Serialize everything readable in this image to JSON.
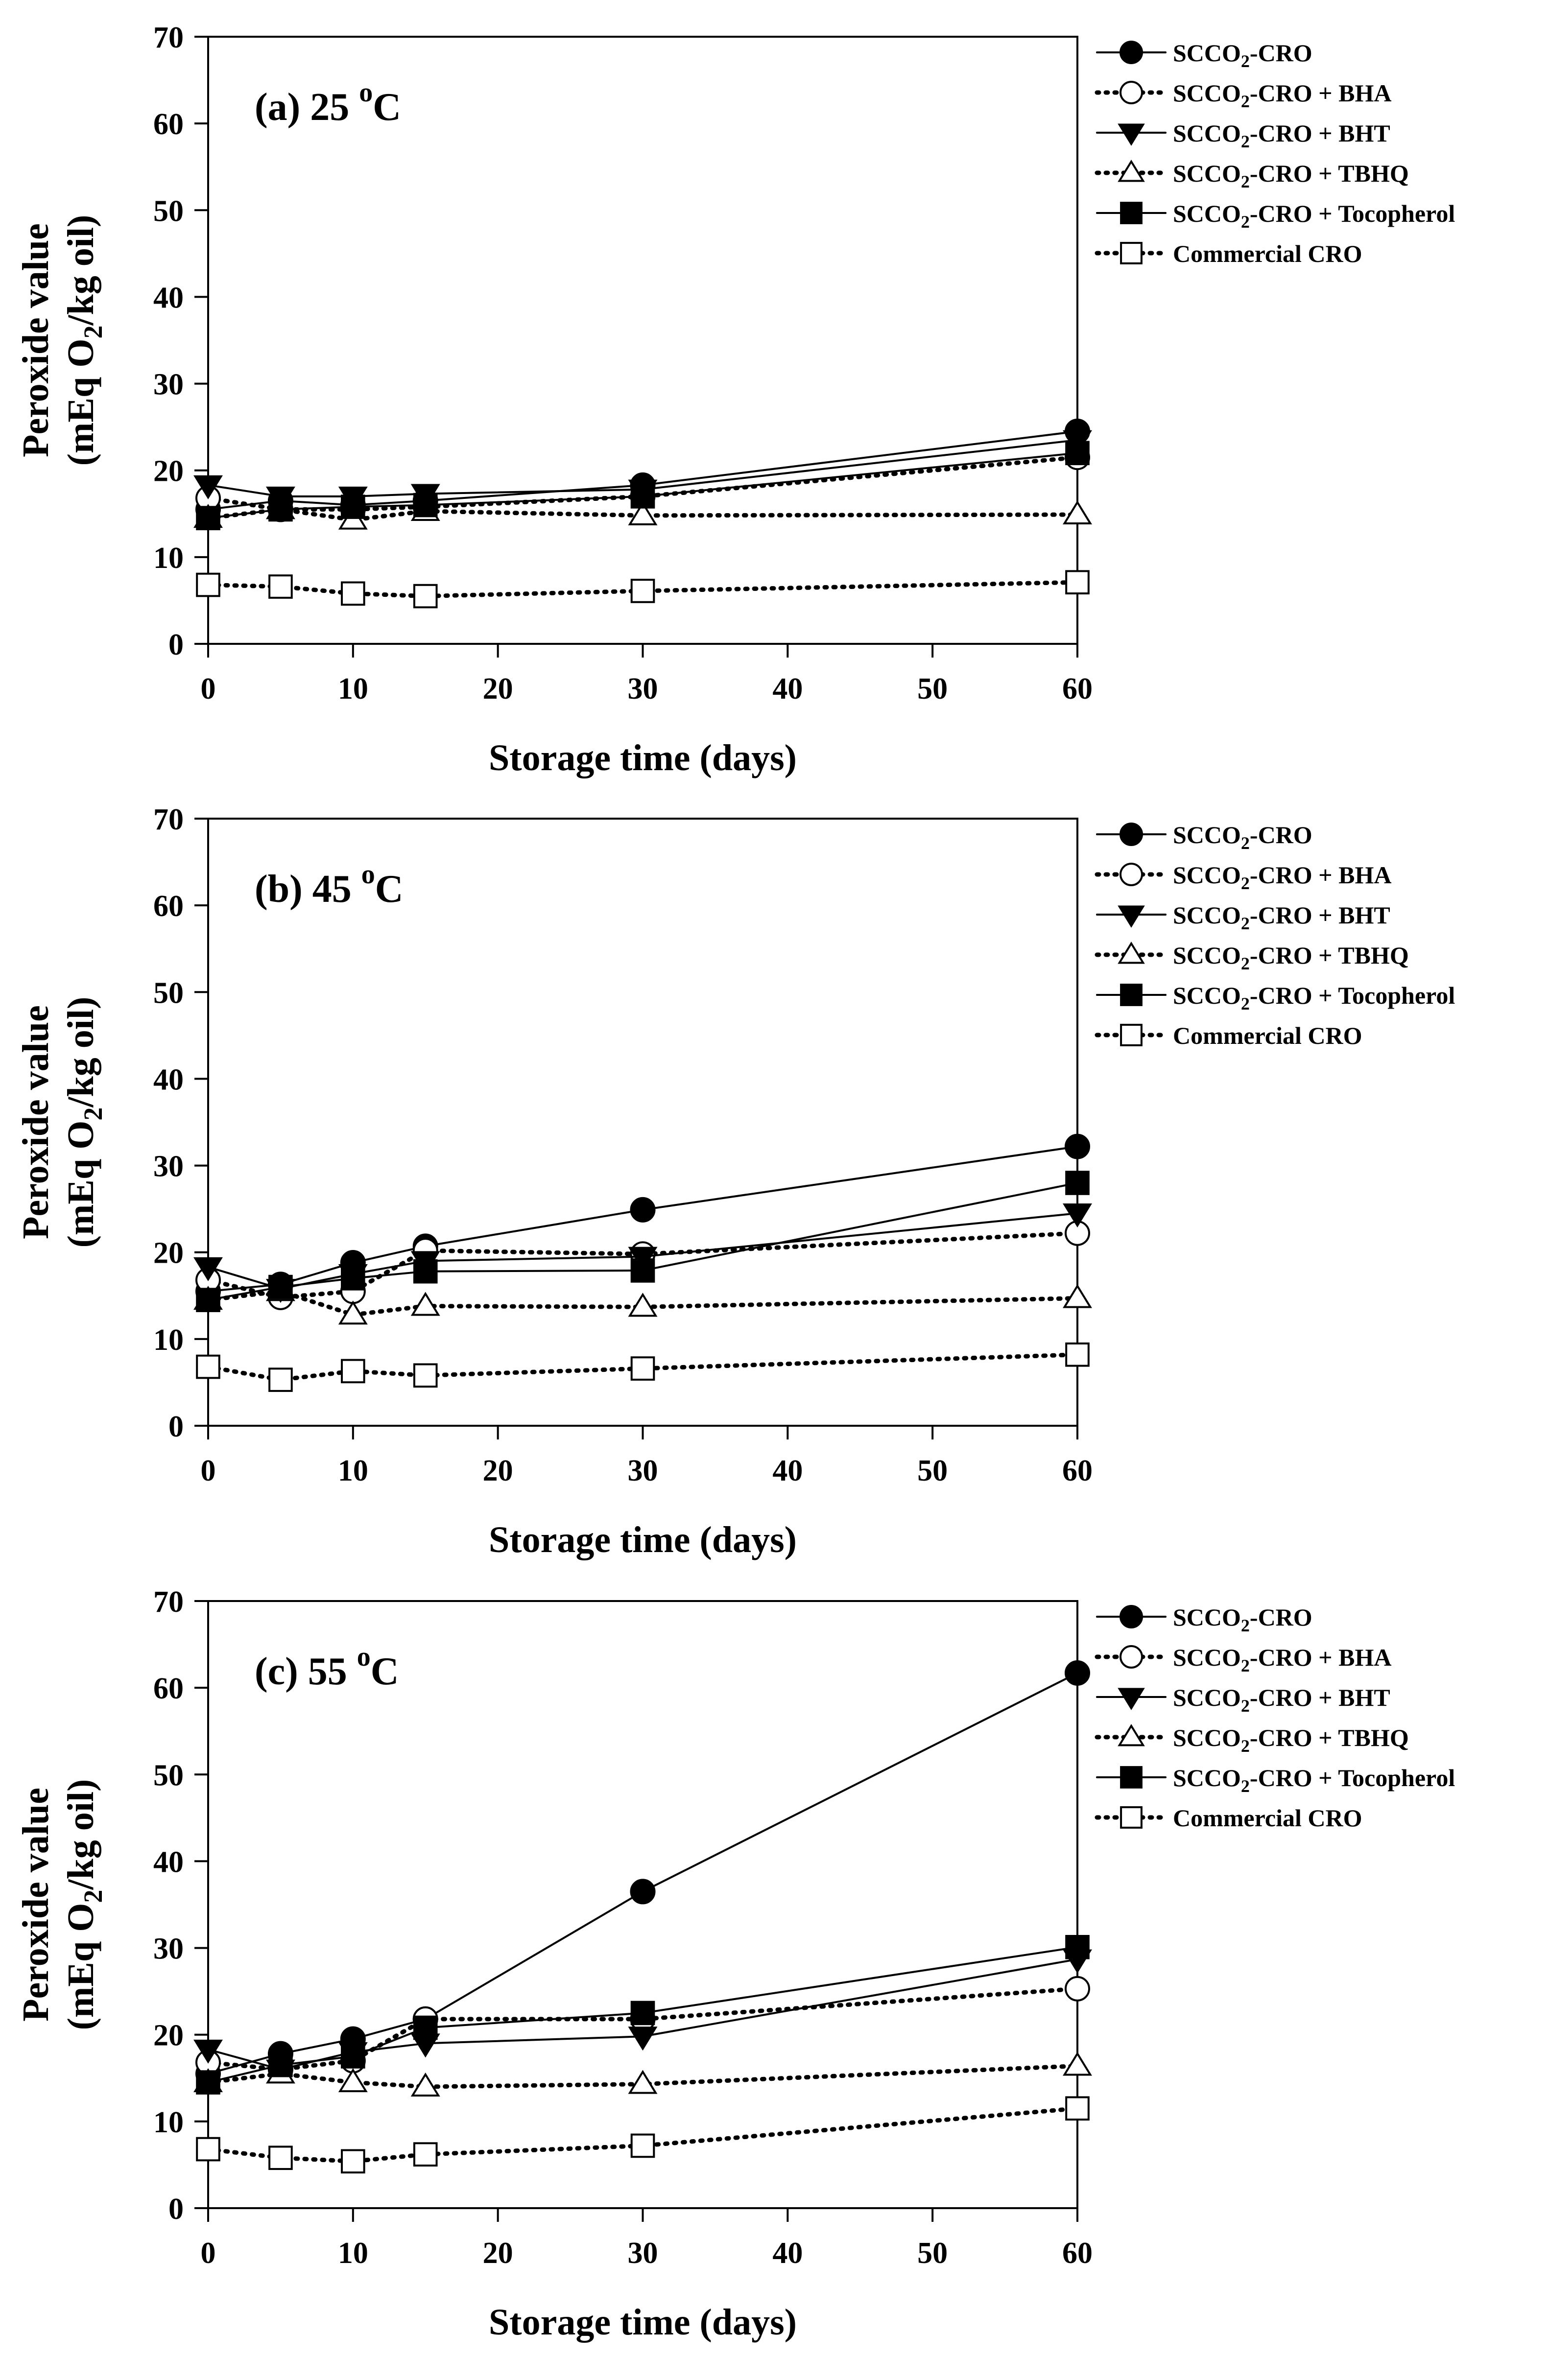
{
  "chart_data": [
    {
      "type": "line",
      "panel_label": "(a) 25 °C",
      "panel_label_parts": {
        "prefix": "(a) 25 ",
        "sup": "o",
        "unit": "C"
      },
      "xlabel": "Storage time (days)",
      "ylabel_line1": "Peroxide value",
      "ylabel_line2": "(mEq O2/kg oil)",
      "xlim": [
        0,
        60
      ],
      "ylim": [
        0,
        70
      ],
      "xticks": [
        0,
        10,
        20,
        30,
        40,
        50,
        60
      ],
      "yticks": [
        0,
        10,
        20,
        30,
        40,
        50,
        60,
        70
      ],
      "x": [
        0,
        5,
        10,
        15,
        30,
        60
      ],
      "series": [
        {
          "name": "SCCO2-CRO",
          "values": [
            15.5,
            16.5,
            16.0,
            16.5,
            18.3,
            24.5
          ]
        },
        {
          "name": "SCCO2-CRO + BHA",
          "values": [
            16.8,
            15.5,
            15.5,
            15.8,
            17.0,
            21.5
          ]
        },
        {
          "name": "SCCO2-CRO + BHT",
          "values": [
            18.3,
            17.0,
            17.0,
            17.3,
            17.8,
            23.5
          ]
        },
        {
          "name": "SCCO2-CRO + TBHQ",
          "values": [
            14.5,
            15.5,
            14.3,
            15.3,
            14.8,
            14.9
          ]
        },
        {
          "name": "SCCO2-CRO + Tocopherol",
          "values": [
            14.5,
            15.5,
            15.8,
            16.0,
            17.0,
            22.0
          ]
        },
        {
          "name": "Commercial CRO",
          "values": [
            6.8,
            6.6,
            5.8,
            5.5,
            6.1,
            7.1
          ]
        }
      ],
      "legend_position": "right"
    },
    {
      "type": "line",
      "panel_label": "(b) 45 °C",
      "panel_label_parts": {
        "prefix": "(b) 45 ",
        "sup": "o",
        "unit": "C"
      },
      "xlabel": "Storage time (days)",
      "ylabel_line1": "Peroxide value",
      "ylabel_line2": "(mEq O2/kg oil)",
      "xlim": [
        0,
        60
      ],
      "ylim": [
        0,
        70
      ],
      "xticks": [
        0,
        10,
        20,
        30,
        40,
        50,
        60
      ],
      "yticks": [
        0,
        10,
        20,
        30,
        40,
        50,
        60,
        70
      ],
      "x": [
        0,
        5,
        10,
        15,
        30,
        60
      ],
      "series": [
        {
          "name": "SCCO2-CRO",
          "values": [
            15.5,
            16.3,
            18.8,
            20.7,
            24.9,
            32.2
          ]
        },
        {
          "name": "SCCO2-CRO + BHA",
          "values": [
            16.8,
            14.8,
            15.5,
            20.2,
            19.8,
            22.2
          ]
        },
        {
          "name": "SCCO2-CRO + BHT",
          "values": [
            18.3,
            15.8,
            17.5,
            19.0,
            19.5,
            24.5
          ]
        },
        {
          "name": "SCCO2-CRO + TBHQ",
          "values": [
            14.5,
            15.5,
            12.8,
            13.8,
            13.7,
            14.7
          ]
        },
        {
          "name": "SCCO2-CRO + Tocopherol",
          "values": [
            14.5,
            16.0,
            17.0,
            17.8,
            17.9,
            28.0
          ]
        },
        {
          "name": "Commercial CRO",
          "values": [
            6.8,
            5.3,
            6.3,
            5.8,
            6.6,
            8.2
          ]
        }
      ],
      "legend_position": "right"
    },
    {
      "type": "line",
      "panel_label": "(c) 55 °C",
      "panel_label_parts": {
        "prefix": "(c) 55 ",
        "sup": "o",
        "unit": "C"
      },
      "xlabel": "Storage time (days)",
      "ylabel_line1": "Peroxide value",
      "ylabel_line2": "(mEq O2/kg oil)",
      "xlim": [
        0,
        60
      ],
      "ylim": [
        0,
        70
      ],
      "xticks": [
        0,
        10,
        20,
        30,
        40,
        50,
        60
      ],
      "yticks": [
        0,
        10,
        20,
        30,
        40,
        50,
        60,
        70
      ],
      "x": [
        0,
        5,
        10,
        15,
        30,
        60
      ],
      "series": [
        {
          "name": "SCCO2-CRO",
          "values": [
            15.5,
            17.8,
            19.5,
            21.8,
            36.5,
            61.7
          ]
        },
        {
          "name": "SCCO2-CRO + BHA",
          "values": [
            16.8,
            16.0,
            17.0,
            21.8,
            21.8,
            25.3
          ]
        },
        {
          "name": "SCCO2-CRO + BHT",
          "values": [
            18.3,
            16.0,
            18.0,
            19.0,
            19.8,
            28.7
          ]
        },
        {
          "name": "SCCO2-CRO + TBHQ",
          "values": [
            14.5,
            15.5,
            14.5,
            14.0,
            14.3,
            16.4
          ]
        },
        {
          "name": "SCCO2-CRO + Tocopherol",
          "values": [
            14.5,
            16.5,
            17.5,
            20.8,
            22.5,
            30.1
          ]
        },
        {
          "name": "Commercial CRO",
          "values": [
            6.8,
            5.8,
            5.4,
            6.2,
            7.2,
            11.5
          ]
        }
      ],
      "legend_position": "right"
    }
  ],
  "series_styles": [
    {
      "marker": "circle",
      "fill": "#000000",
      "dash": "solid"
    },
    {
      "marker": "circle",
      "fill": "#ffffff",
      "dash": "dotted"
    },
    {
      "marker": "triangle-down",
      "fill": "#000000",
      "dash": "solid"
    },
    {
      "marker": "triangle-up",
      "fill": "#ffffff",
      "dash": "dotted"
    },
    {
      "marker": "square",
      "fill": "#000000",
      "dash": "solid"
    },
    {
      "marker": "square",
      "fill": "#ffffff",
      "dash": "dotted"
    }
  ],
  "colors": {
    "ink": "#000000",
    "background": "#ffffff"
  }
}
